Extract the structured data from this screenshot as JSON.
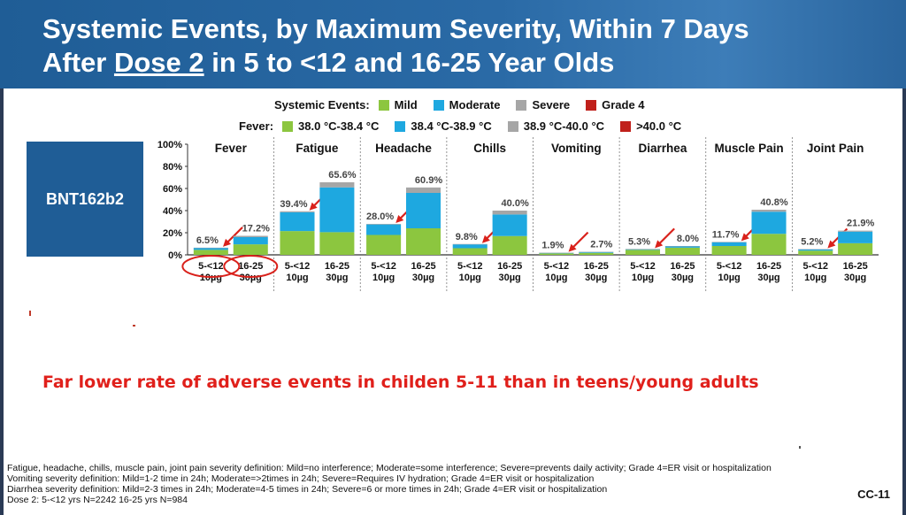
{
  "header": {
    "title_line1": "Systemic Events, by Maximum Severity, Within 7 Days",
    "title_line2_prefix": "After ",
    "title_line2_underlined": "Dose 2",
    "title_line2_suffix": " in 5 to <12 and 16-25 Year Olds"
  },
  "legend_systemic": {
    "title": "Systemic Events:",
    "items": [
      {
        "label": "Mild",
        "color": "#8cc63f"
      },
      {
        "label": "Moderate",
        "color": "#1ea8e0"
      },
      {
        "label": "Severe",
        "color": "#a6a6a6"
      },
      {
        "label": "Grade 4",
        "color": "#c0201b"
      }
    ]
  },
  "legend_fever": {
    "title": "Fever:",
    "items": [
      {
        "label": "38.0 °C-38.4 °C",
        "color": "#8cc63f"
      },
      {
        "label": "38.4 °C-38.9 °C",
        "color": "#1ea8e0"
      },
      {
        "label": "38.9 °C-40.0 °C",
        "color": "#a6a6a6"
      },
      {
        "label": ">40.0 °C",
        "color": "#c0201b"
      }
    ]
  },
  "badge": "BNT162b2",
  "chart_data": {
    "type": "bar",
    "stacked": true,
    "ylim": [
      0,
      100
    ],
    "yticks": [
      "0%",
      "20%",
      "40%",
      "60%",
      "80%",
      "100%"
    ],
    "x_labels": [
      {
        "line1": "5-<12",
        "line2": "10µg"
      },
      {
        "line1": "16-25",
        "line2": "30µg"
      }
    ],
    "series_names": [
      "Mild",
      "Moderate",
      "Severe",
      "Grade 4"
    ],
    "colors": [
      "#8cc63f",
      "#1ea8e0",
      "#a6a6a6",
      "#c0201b"
    ],
    "panels": [
      {
        "name": "Fever",
        "bars": [
          {
            "total_label": "6.5%",
            "values": [
              4.5,
              1.8,
              0.2,
              0
            ]
          },
          {
            "total_label": "17.2%",
            "values": [
              9.5,
              6.5,
              1.2,
              0
            ]
          }
        ]
      },
      {
        "name": "Fatigue",
        "bars": [
          {
            "total_label": "39.4%",
            "values": [
              21.5,
              17.0,
              0.9,
              0
            ]
          },
          {
            "total_label": "65.6%",
            "values": [
              20.5,
              40.5,
              4.6,
              0
            ]
          }
        ]
      },
      {
        "name": "Headache",
        "bars": [
          {
            "total_label": "28.0%",
            "values": [
              18.0,
              9.5,
              0.5,
              0
            ]
          },
          {
            "total_label": "60.9%",
            "values": [
              24.0,
              32.0,
              4.9,
              0
            ]
          }
        ]
      },
      {
        "name": "Chills",
        "bars": [
          {
            "total_label": "9.8%",
            "values": [
              6.0,
              3.5,
              0.3,
              0
            ]
          },
          {
            "total_label": "40.0%",
            "values": [
              17.0,
              19.5,
              3.5,
              0
            ]
          }
        ]
      },
      {
        "name": "Vomiting",
        "bars": [
          {
            "total_label": "1.9%",
            "values": [
              1.3,
              0.5,
              0.1,
              0
            ]
          },
          {
            "total_label": "2.7%",
            "values": [
              1.8,
              0.8,
              0.1,
              0
            ]
          }
        ]
      },
      {
        "name": "Diarrhea",
        "bars": [
          {
            "total_label": "5.3%",
            "values": [
              4.5,
              0.7,
              0.1,
              0
            ]
          },
          {
            "total_label": "8.0%",
            "values": [
              6.5,
              1.4,
              0.1,
              0
            ]
          }
        ]
      },
      {
        "name": "Muscle Pain",
        "bars": [
          {
            "total_label": "11.7%",
            "values": [
              8.0,
              3.5,
              0.2,
              0
            ]
          },
          {
            "total_label": "40.8%",
            "values": [
              19.0,
              20.0,
              1.8,
              0
            ]
          }
        ]
      },
      {
        "name": "Joint Pain",
        "bars": [
          {
            "total_label": "5.2%",
            "values": [
              3.8,
              1.3,
              0.1,
              0
            ]
          },
          {
            "total_label": "21.9%",
            "values": [
              10.5,
              10.5,
              0.9,
              0
            ]
          }
        ]
      }
    ]
  },
  "note": "Far lower rate of adverse events in childen 5-11 than in teens/young adults",
  "footnotes": [
    "Fatigue, headache, chills, muscle pain, joint pain severity definition: Mild=no interference; Moderate=some interference; Severe=prevents daily activity; Grade 4=ER visit or hospitalization",
    "Vomiting severity definition: Mild=1-2 time in 24h; Moderate=>2times in 24h; Severe=Requires IV hydration; Grade 4=ER visit or hospitalization",
    "Diarrhea severity definition: Mild=2-3 times in 24h; Moderate=4-5 times in 24h; Severe=6 or more times in 24h; Grade 4=ER visit or hospitalization",
    "Dose 2: 5-<12 yrs N=2242 16-25 yrs N=984"
  ],
  "slide_id": "CC-11"
}
